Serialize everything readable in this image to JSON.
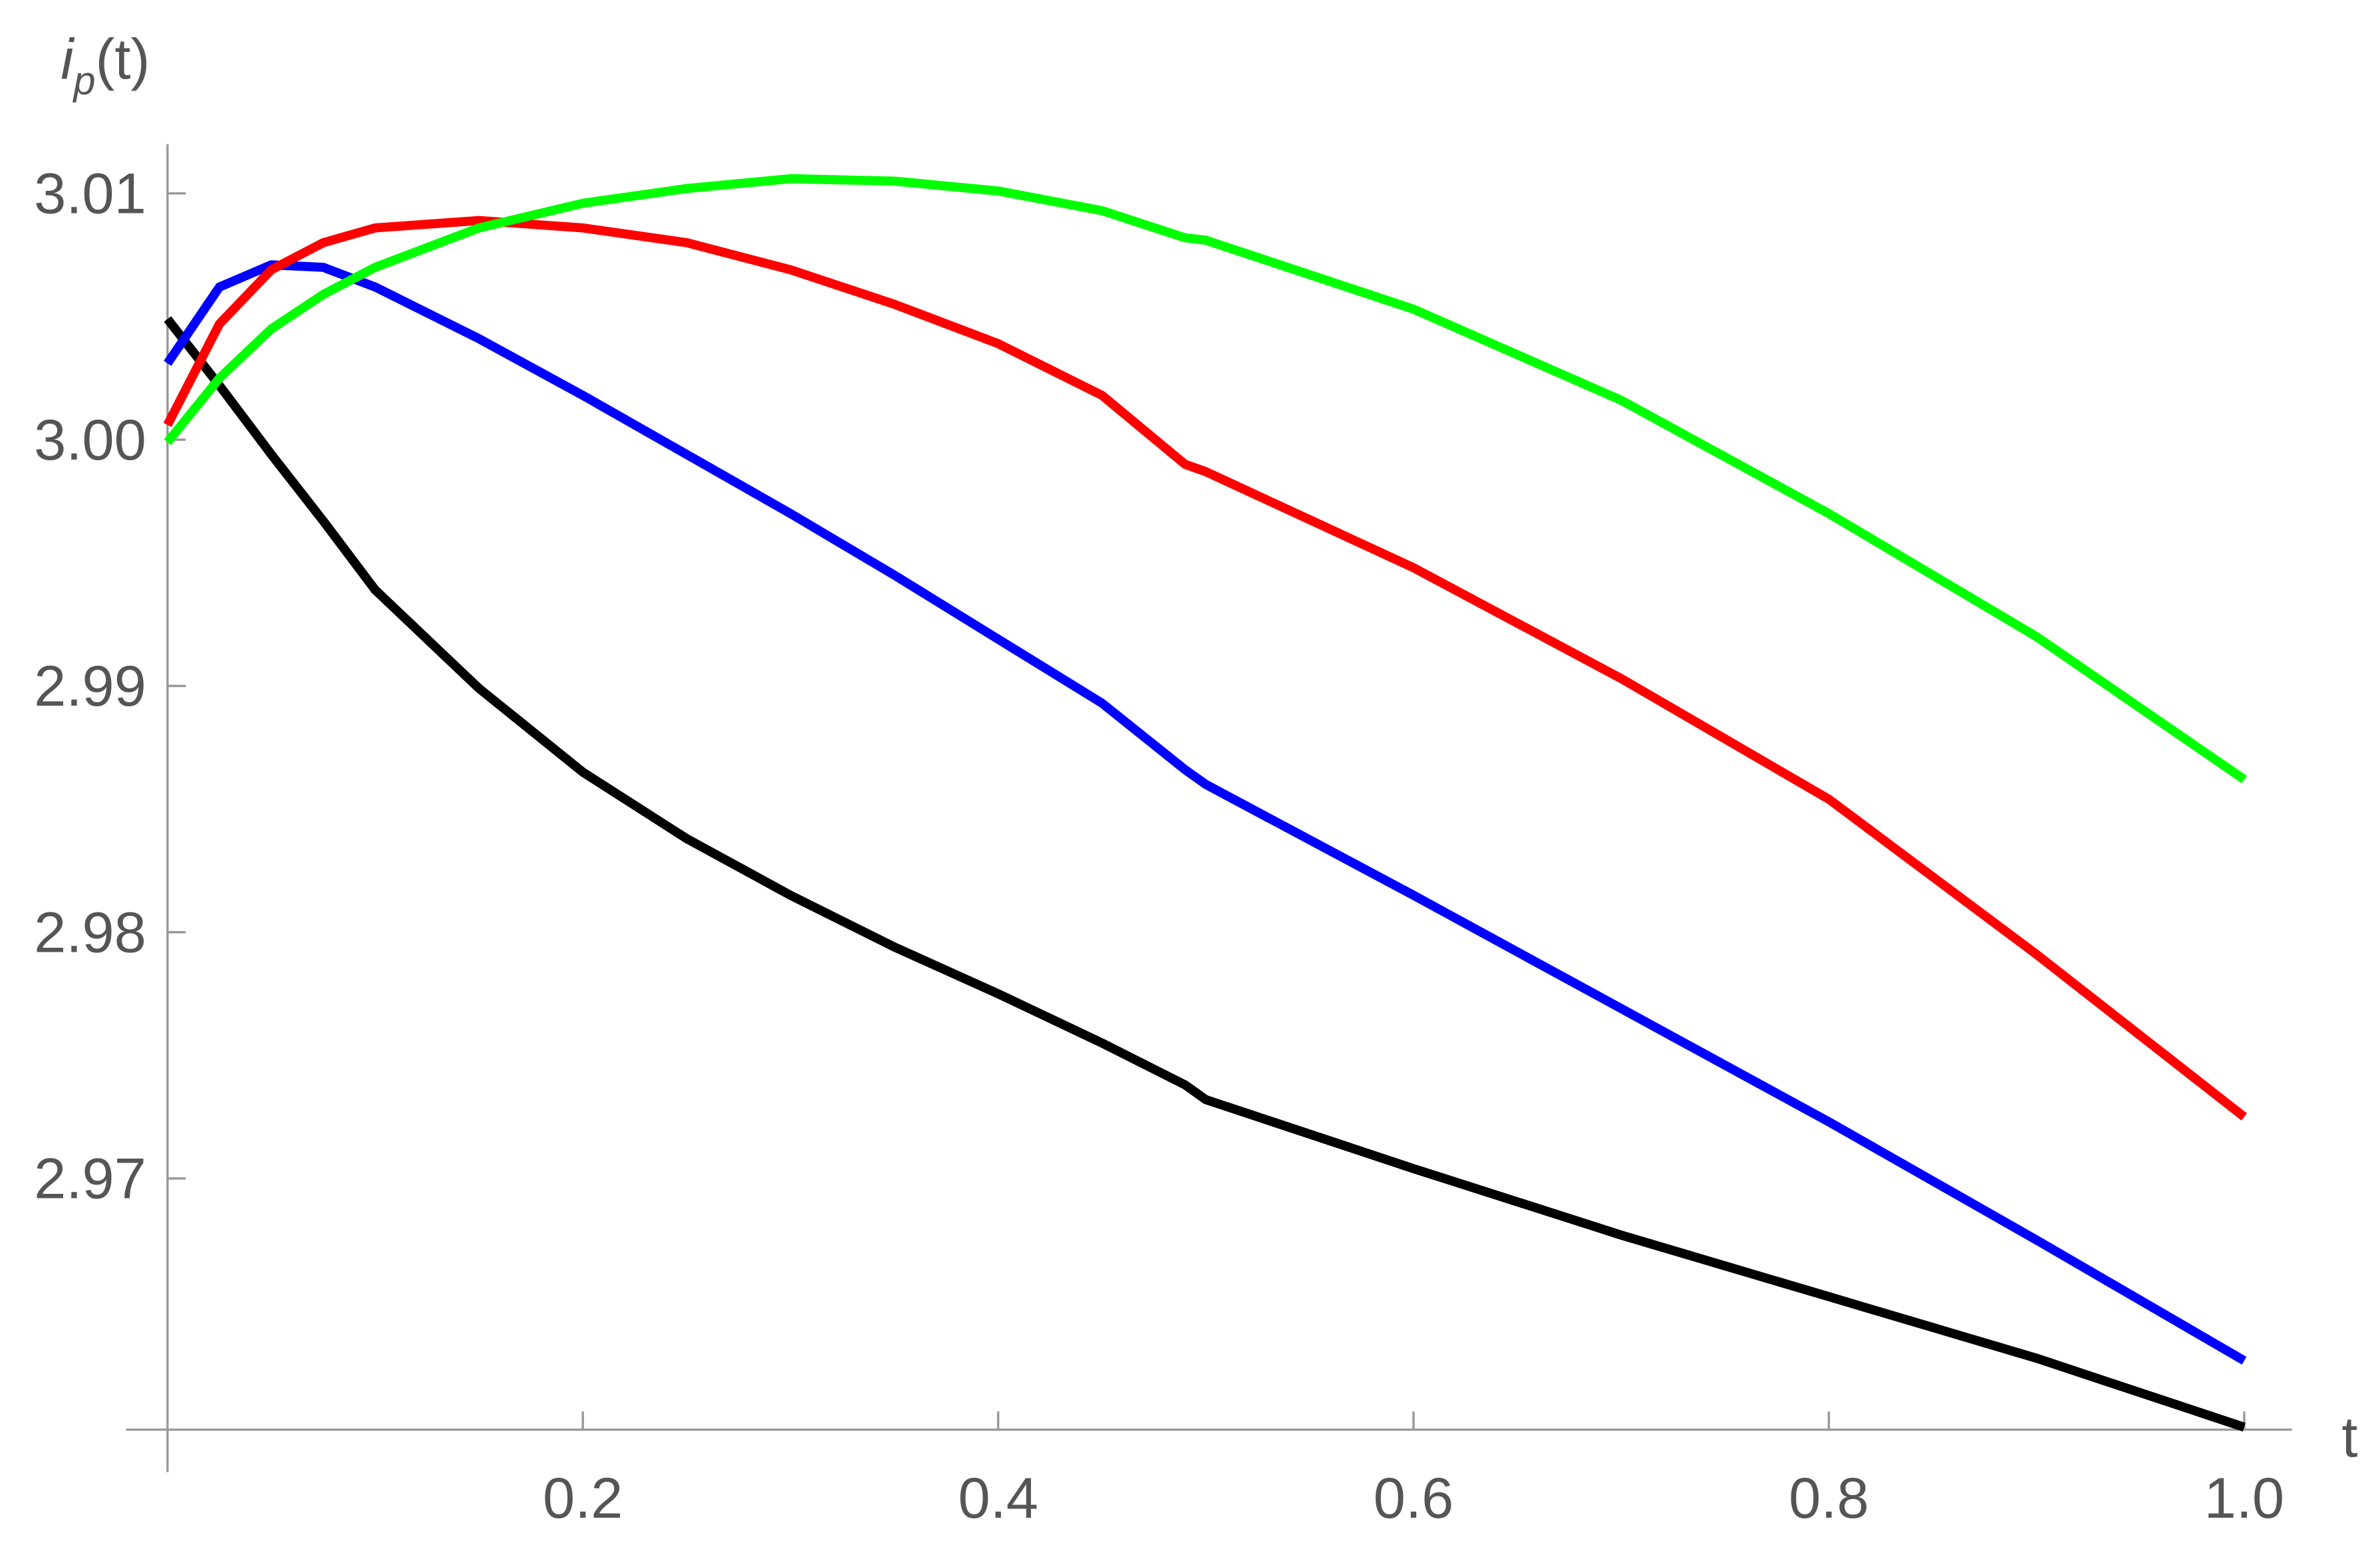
{
  "chart_data": {
    "type": "line",
    "xlabel": "t",
    "ylabel": {
      "symbol": "i",
      "subscript": "p",
      "argument": "(t)"
    },
    "x": [
      0,
      0.025,
      0.05,
      0.075,
      0.1,
      0.15,
      0.2,
      0.25,
      0.3,
      0.35,
      0.4,
      0.45,
      0.49,
      0.5,
      0.6,
      0.7,
      0.8,
      0.9,
      1
    ],
    "series": [
      {
        "color": "#000000",
        "values": [
          3.0049,
          3.0022,
          2.9994,
          2.9967,
          2.9939,
          2.9899,
          2.9865,
          2.9838,
          2.9815,
          2.9794,
          2.9775,
          2.9755,
          2.9738,
          2.9732,
          2.9704,
          2.9677,
          2.9652,
          2.9627,
          2.9599
        ]
      },
      {
        "color": "#0000ff",
        "values": [
          3.0031,
          3.0062,
          3.0071,
          3.007,
          3.0062,
          3.0041,
          3.0018,
          2.9994,
          2.997,
          2.9945,
          2.9919,
          2.9893,
          2.9866,
          2.986,
          2.9815,
          2.9769,
          2.9723,
          2.9675,
          2.9626
        ]
      },
      {
        "color": "#ff0000",
        "values": [
          3.0006,
          3.0047,
          3.0069,
          3.008,
          3.0086,
          3.0089,
          3.0086,
          3.008,
          3.0069,
          3.0055,
          3.0039,
          3.0018,
          2.999,
          2.9987,
          2.9948,
          2.9903,
          2.9854,
          2.9791,
          2.9725
        ]
      },
      {
        "color": "#00ff00",
        "values": [
          2.9999,
          3.0025,
          3.0045,
          3.0059,
          3.007,
          3.0086,
          3.0096,
          3.0102,
          3.0106,
          3.0105,
          3.0101,
          3.0093,
          3.0082,
          3.0081,
          3.0053,
          3.0016,
          2.997,
          2.992,
          2.9862
        ]
      }
    ],
    "xlim": [
      -0.02,
      1.023
    ],
    "ylim": [
      2.9598,
      3.012
    ],
    "xticks": [
      0.2,
      0.4,
      0.6,
      0.8,
      {
        "value": 1,
        "label": "1.0"
      }
    ],
    "yticks": [
      2.97,
      2.98,
      2.99,
      {
        "value": 3,
        "label": "3.00"
      },
      3.01
    ]
  }
}
